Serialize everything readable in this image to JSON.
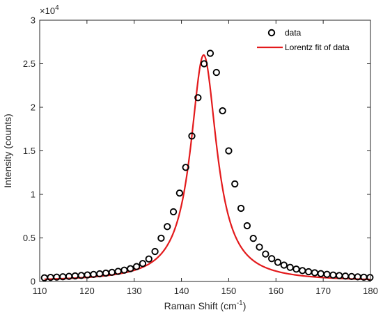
{
  "chart_data": {
    "type": "scatter",
    "xlabel": "Raman Shift (cm",
    "xlabel_sup": "-1",
    "xlabel_close": ")",
    "ylabel": "Intensity (counts)",
    "multiplier_base": "×10",
    "multiplier_exp": "4",
    "xlim": [
      110,
      180
    ],
    "ylim": [
      0,
      30000
    ],
    "x_ticks": [
      "110",
      "120",
      "130",
      "140",
      "150",
      "160",
      "170",
      "180"
    ],
    "y_ticks": [
      "0",
      "0.5",
      "1",
      "1.5",
      "2",
      "2.5",
      "3"
    ],
    "legend_position": "top-right",
    "legend": [
      "data",
      "Lorentz fit of data"
    ],
    "colors": {
      "data": "#000000",
      "fit": "#e31a1c",
      "axis": "#262626"
    },
    "series": [
      {
        "name": "data",
        "kind": "markers",
        "x": [
          111.0,
          112.3,
          113.6,
          114.9,
          116.2,
          117.5,
          118.8,
          120.1,
          121.4,
          122.7,
          124.0,
          125.3,
          126.6,
          127.9,
          129.2,
          130.5,
          131.8,
          133.1,
          134.4,
          135.7,
          137.0,
          138.3,
          139.6,
          140.9,
          142.2,
          143.5,
          144.8,
          146.1,
          147.4,
          148.7,
          150.0,
          151.3,
          152.6,
          153.9,
          155.2,
          156.5,
          157.8,
          159.1,
          160.4,
          161.7,
          163.0,
          164.3,
          165.6,
          166.9,
          168.2,
          169.5,
          170.8,
          172.1,
          173.4,
          174.7,
          176.0,
          177.3,
          178.6,
          179.9
        ],
        "y": [
          420,
          470,
          500,
          540,
          590,
          640,
          690,
          750,
          810,
          880,
          960,
          1050,
          1160,
          1300,
          1470,
          1710,
          2060,
          2580,
          3440,
          4970,
          6300,
          8000,
          10150,
          13100,
          16700,
          21100,
          25000,
          26200,
          24000,
          19600,
          15000,
          11200,
          8400,
          6400,
          4950,
          3950,
          3150,
          2620,
          2200,
          1880,
          1620,
          1420,
          1250,
          1120,
          1000,
          900,
          820,
          740,
          680,
          620,
          570,
          530,
          490,
          460
        ]
      },
      {
        "name": "Lorentz fit of data",
        "kind": "line",
        "x0": 144.7,
        "gamma": 3.35,
        "amplitude": 26000,
        "baseline": 0
      }
    ]
  }
}
